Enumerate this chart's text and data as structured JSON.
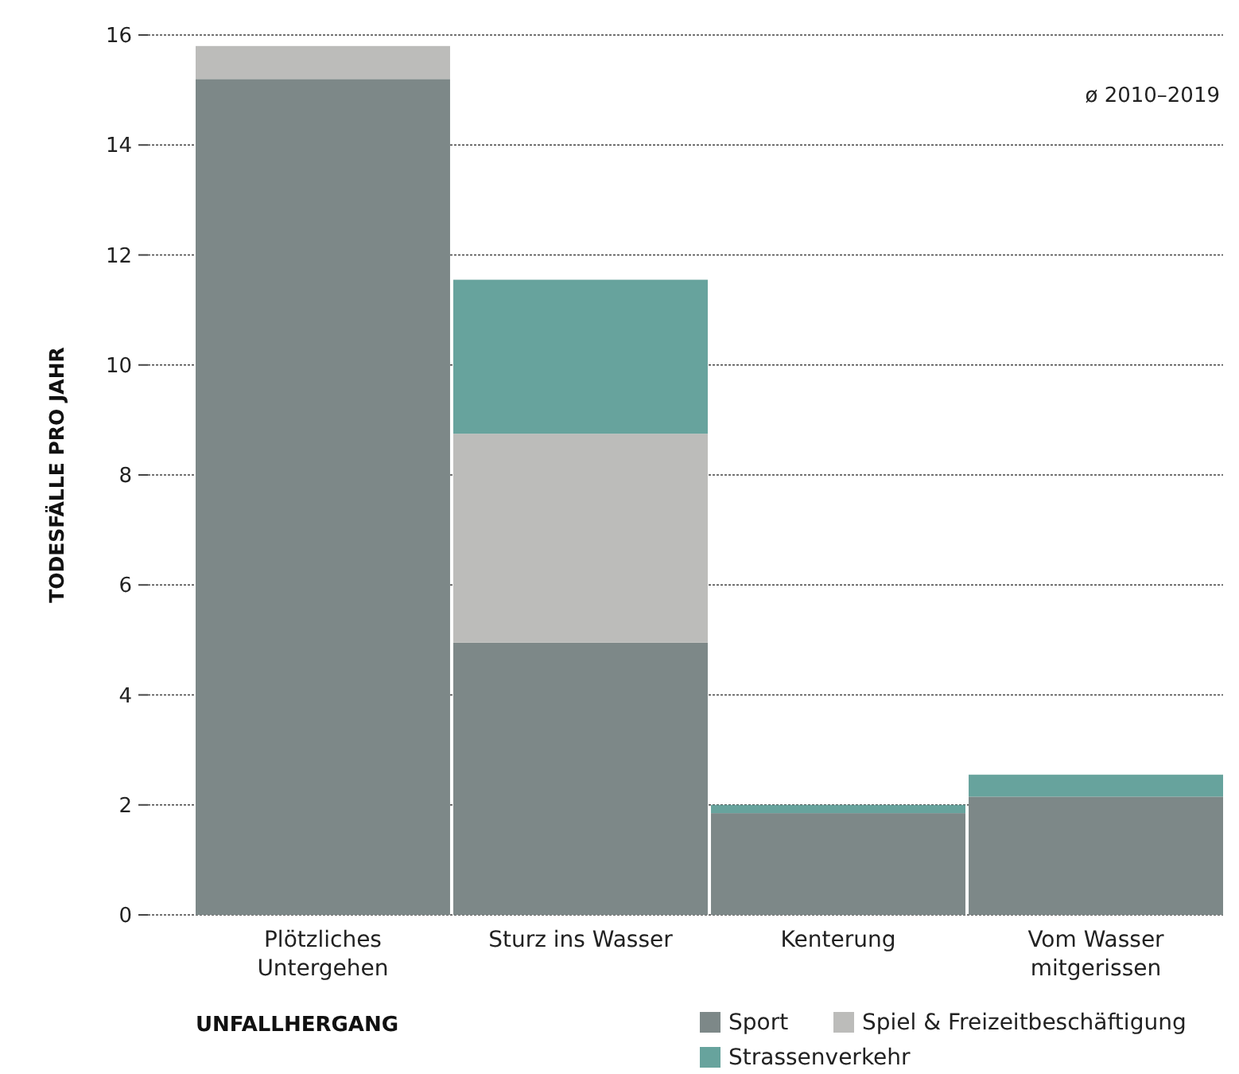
{
  "chart_data": {
    "type": "bar",
    "stacked": true,
    "ylabel": "TODESFÄLLE PRO JAHR",
    "xlabel": "UNFALLHERGANG",
    "categories": [
      "Plötzliches\nUntergehen",
      "Sturz ins Wasser",
      "Kenterung",
      "Vom Wasser\nmitgerissen"
    ],
    "series": [
      {
        "name": "Sport",
        "color": "#7d8888",
        "values": [
          15.2,
          4.95,
          1.85,
          2.15
        ]
      },
      {
        "name": "Spiel & Freizeitbeschäftigung",
        "color": "#bcbcba",
        "values": [
          0.6,
          3.8,
          0,
          0
        ]
      },
      {
        "name": "Strassenverkehr",
        "color": "#67a39d",
        "values": [
          0,
          2.8,
          0.15,
          0.4
        ]
      }
    ],
    "ylim": [
      0,
      16
    ],
    "yticks": [
      0,
      2,
      4,
      6,
      8,
      10,
      12,
      14,
      16
    ],
    "grid": "y",
    "legend": "bottom right",
    "annotations": [
      "ø 2010–2019"
    ]
  }
}
